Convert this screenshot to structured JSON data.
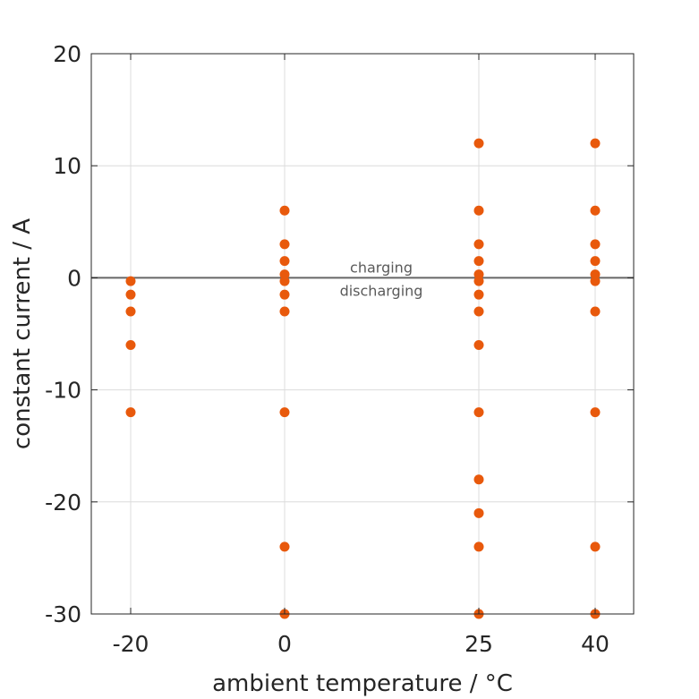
{
  "chart_data": {
    "type": "scatter",
    "xlabel": "ambient temperature / °C",
    "ylabel": "constant current / A",
    "x_tick_values": [
      -20,
      0,
      25,
      40
    ],
    "x_tick_labels": [
      "-20",
      "0",
      "25",
      "40"
    ],
    "y_tick_values": [
      -30,
      -20,
      -10,
      0,
      10,
      20
    ],
    "y_tick_labels": [
      "-30",
      "-20",
      "-10",
      "0",
      "10",
      "20"
    ],
    "grid": true,
    "reference_line_y": 0,
    "annotations": {
      "above": "charging",
      "below": "discharging"
    },
    "colors": {
      "marker": "#e8590c",
      "zero_line": "#666666",
      "grid": "#dcdcdc",
      "axes": "#262626"
    },
    "points": [
      {
        "x": -20,
        "y": -0.3
      },
      {
        "x": -20,
        "y": -1.5
      },
      {
        "x": -20,
        "y": -3
      },
      {
        "x": -20,
        "y": -6
      },
      {
        "x": -20,
        "y": -12
      },
      {
        "x": 0,
        "y": 6
      },
      {
        "x": 0,
        "y": 3
      },
      {
        "x": 0,
        "y": 1.5
      },
      {
        "x": 0,
        "y": 0.3
      },
      {
        "x": 0,
        "y": -0.3
      },
      {
        "x": 0,
        "y": -1.5
      },
      {
        "x": 0,
        "y": -3
      },
      {
        "x": 0,
        "y": -12
      },
      {
        "x": 0,
        "y": -24
      },
      {
        "x": 0,
        "y": -30
      },
      {
        "x": 25,
        "y": 12
      },
      {
        "x": 25,
        "y": 6
      },
      {
        "x": 25,
        "y": 3
      },
      {
        "x": 25,
        "y": 1.5
      },
      {
        "x": 25,
        "y": 0.3
      },
      {
        "x": 25,
        "y": -0.3
      },
      {
        "x": 25,
        "y": -1.5
      },
      {
        "x": 25,
        "y": -3
      },
      {
        "x": 25,
        "y": -6
      },
      {
        "x": 25,
        "y": -12
      },
      {
        "x": 25,
        "y": -18
      },
      {
        "x": 25,
        "y": -21
      },
      {
        "x": 25,
        "y": -24
      },
      {
        "x": 25,
        "y": -30
      },
      {
        "x": 40,
        "y": 12
      },
      {
        "x": 40,
        "y": 6
      },
      {
        "x": 40,
        "y": 3
      },
      {
        "x": 40,
        "y": 1.5
      },
      {
        "x": 40,
        "y": 0.3
      },
      {
        "x": 40,
        "y": -0.3
      },
      {
        "x": 40,
        "y": -3
      },
      {
        "x": 40,
        "y": -12
      },
      {
        "x": 40,
        "y": -24
      },
      {
        "x": 40,
        "y": -30
      }
    ]
  }
}
